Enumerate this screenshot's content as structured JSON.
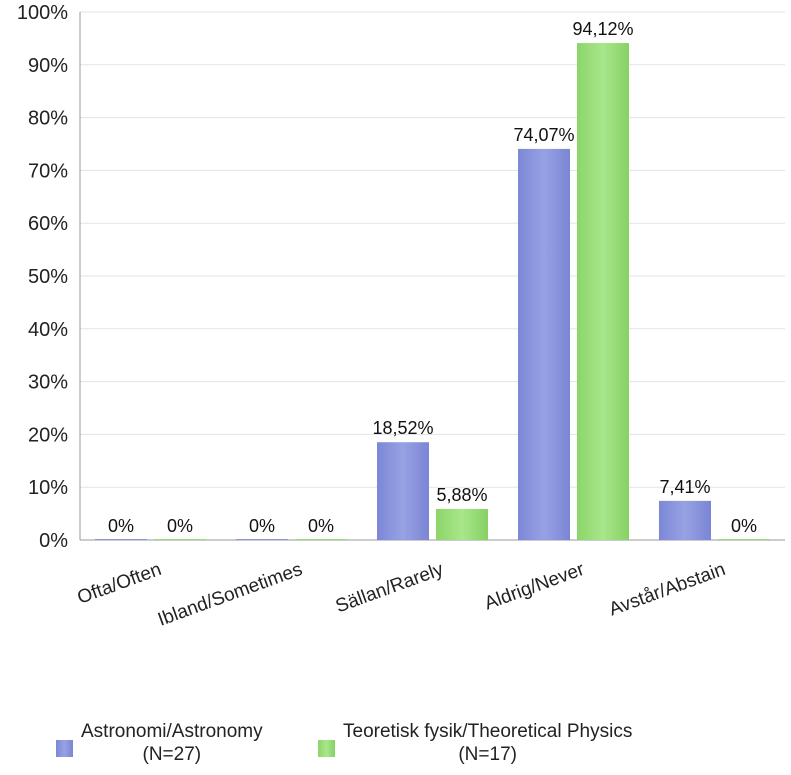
{
  "chart_data": {
    "type": "bar",
    "categories": [
      "Ofta/Often",
      "Ibland/Sometimes",
      "Sällan/Rarely",
      "Aldrig/Never",
      "Avstår/Abstain"
    ],
    "series": [
      {
        "name": "Astronomi/Astronomy",
        "name_sub": "(N=27)",
        "values": [
          0,
          0,
          18.52,
          74.07,
          7.41
        ],
        "labels": [
          "0%",
          "0%",
          "18,52%",
          "74,07%",
          "7,41%"
        ],
        "color": "#8a95dc"
      },
      {
        "name": "Teoretisk fysik/Theoretical Physics",
        "name_sub": "(N=17)",
        "values": [
          0,
          0,
          5.88,
          94.12,
          0
        ],
        "labels": [
          "0%",
          "0%",
          "5,88%",
          "94,12%",
          "0%"
        ],
        "color": "#99dc7a"
      }
    ],
    "yticks": [
      "0%",
      "10%",
      "20%",
      "30%",
      "40%",
      "50%",
      "60%",
      "70%",
      "80%",
      "90%",
      "100%"
    ],
    "ylim": [
      0,
      100
    ],
    "grid": true,
    "legend": "bottom"
  }
}
